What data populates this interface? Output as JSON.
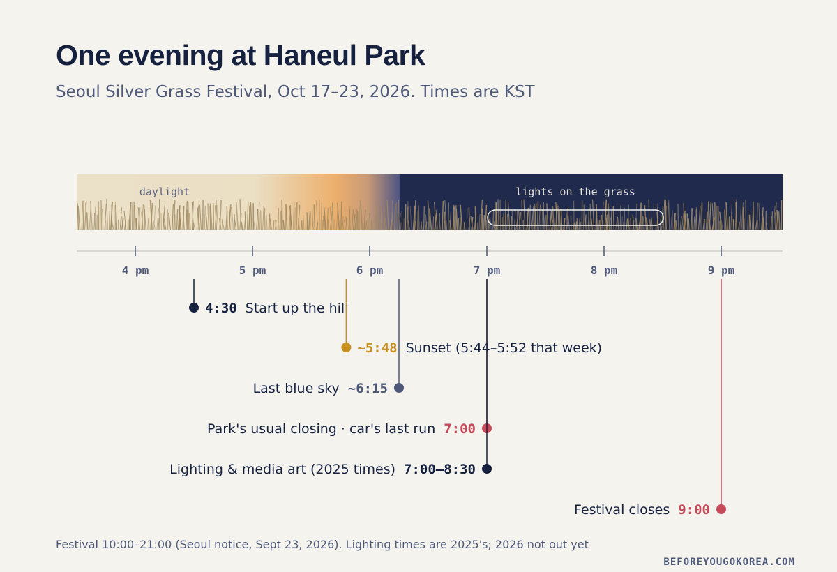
{
  "title": "One evening at Haneul Park",
  "subtitle": "Seoul Silver Grass Festival, Oct 17–23, 2026. Times are KST",
  "bands": {
    "daylight_label": "daylight",
    "night_label": "lights on the grass"
  },
  "axis": {
    "ticks": [
      {
        "hour": 16,
        "label": "4 pm"
      },
      {
        "hour": 17,
        "label": "5 pm"
      },
      {
        "hour": 18,
        "label": "6 pm"
      },
      {
        "hour": 19,
        "label": "7 pm"
      },
      {
        "hour": 20,
        "label": "8 pm"
      },
      {
        "hour": 21,
        "label": "9 pm"
      }
    ]
  },
  "events": [
    {
      "time": 16.5,
      "time_label": "4:30",
      "label": "Start up the hill",
      "side": "right",
      "color": "#15213f"
    },
    {
      "time": 17.8,
      "time_label": "~5:48",
      "label": "Sunset (5:44–5:52 that week)",
      "side": "right",
      "color": "#c8901e"
    },
    {
      "time": 18.25,
      "time_label": "~6:15",
      "label": "Last blue sky",
      "side": "left",
      "color": "#4e5878"
    },
    {
      "time": 19.0,
      "time_label": "7:00",
      "label": "Park's usual closing · car's last run",
      "side": "left",
      "color": "#c84a58"
    },
    {
      "time": 19.0,
      "time_label": "7:00–8:30",
      "label": "Lighting & media art (2025 times)",
      "side": "left",
      "color": "#15213f"
    },
    {
      "time": 21.0,
      "time_label": "9:00",
      "label": "Festival closes",
      "side": "left",
      "color": "#c84a58"
    }
  ],
  "footnote": "Festival 10:00–21:00 (Seoul notice, Sept 23, 2026). Lighting times are 2025's; 2026 not out yet",
  "credit": "BEFOREYOUGOKOREA.COM",
  "colors": {
    "navy": "#15213f",
    "night": "#1f2a4d",
    "sunset": "#e9a461",
    "daylight": "#ebe1c9",
    "grass": "#a08a62",
    "axis": "#d2d0c8",
    "muted": "#4e5878",
    "red": "#c84a58",
    "gold": "#c8901e"
  }
}
